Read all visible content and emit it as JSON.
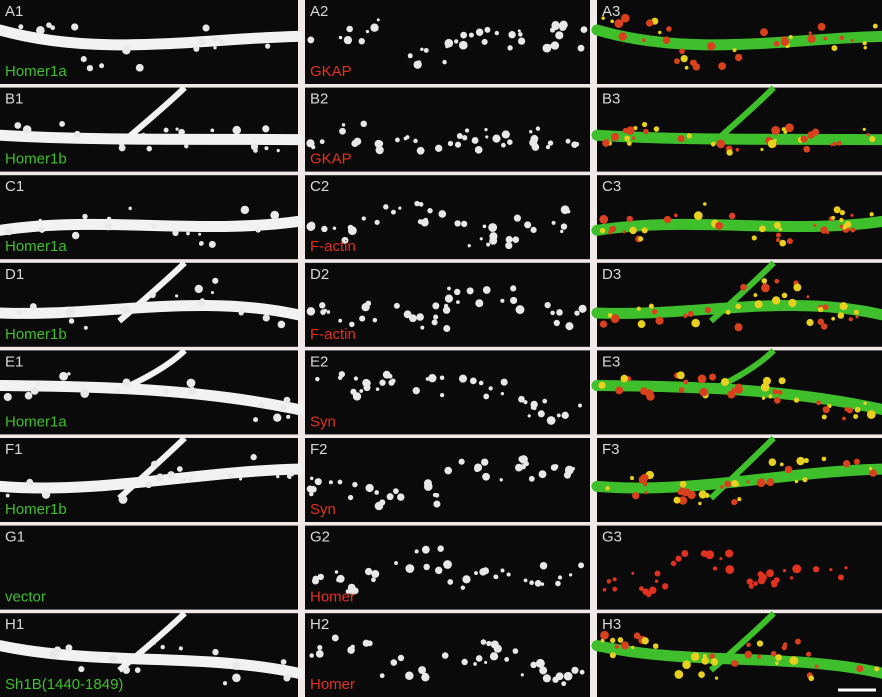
{
  "rows": [
    {
      "panels": [
        {
          "id": "A1",
          "label": "Homer1a"
        },
        {
          "id": "A2",
          "label": "GKAP"
        },
        {
          "id": "A3"
        }
      ]
    },
    {
      "panels": [
        {
          "id": "B1",
          "label": "Homer1b"
        },
        {
          "id": "B2",
          "label": "GKAP"
        },
        {
          "id": "B3"
        }
      ]
    },
    {
      "panels": [
        {
          "id": "C1",
          "label": "Homer1a"
        },
        {
          "id": "C2",
          "label": "F-actin"
        },
        {
          "id": "C3"
        }
      ]
    },
    {
      "panels": [
        {
          "id": "D1",
          "label": "Homer1b"
        },
        {
          "id": "D2",
          "label": "F-actin"
        },
        {
          "id": "D3"
        }
      ]
    },
    {
      "panels": [
        {
          "id": "E1",
          "label": "Homer1a"
        },
        {
          "id": "E2",
          "label": "Syn"
        },
        {
          "id": "E3"
        }
      ]
    },
    {
      "panels": [
        {
          "id": "F1",
          "label": "Homer1b"
        },
        {
          "id": "F2",
          "label": "Syn"
        },
        {
          "id": "F3"
        }
      ]
    },
    {
      "panels": [
        {
          "id": "G1",
          "label": "vector"
        },
        {
          "id": "G2",
          "label": "Homer"
        },
        {
          "id": "G3"
        }
      ]
    },
    {
      "panels": [
        {
          "id": "H1",
          "label": "Sh1B(1440-1849)"
        },
        {
          "id": "H2",
          "label": "Homer"
        },
        {
          "id": "H3"
        }
      ]
    }
  ]
}
